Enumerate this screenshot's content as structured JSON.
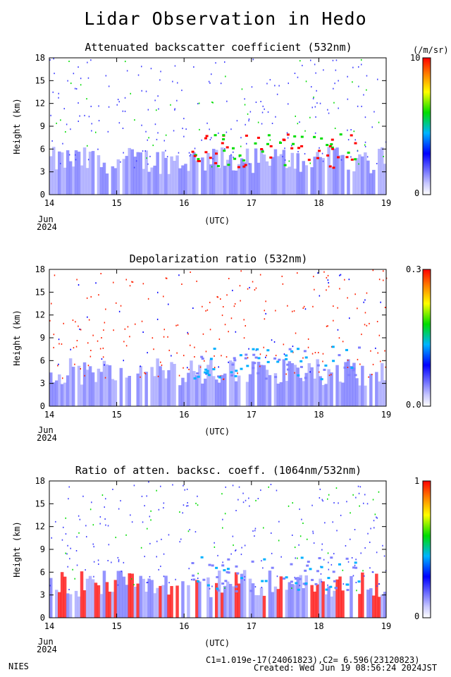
{
  "header": {
    "title": "Lidar Observation in Hedo"
  },
  "footer": {
    "org": "NIES",
    "constants": "C1=1.019e-17(24061823),C2= 6.596(23120823)",
    "created": "Created: Wed Jun 19 08:56:24 2024JST"
  },
  "colors": {
    "low": "#0000ff",
    "mid": "#00cc00",
    "high": "#ff0000"
  },
  "chart_data": [
    {
      "type": "heatmap",
      "title": "Attenuated backscatter coefficient (532nm)",
      "ylabel": "Height (km)",
      "xlabel": "(UTC)",
      "x_ticks": [
        "14",
        "15",
        "16",
        "17",
        "18",
        "19"
      ],
      "x_month": "Jun",
      "x_year": "2024",
      "y_ticks": [
        "0",
        "3",
        "6",
        "9",
        "12",
        "15",
        "18"
      ],
      "ylim": [
        0,
        18
      ],
      "xlim": [
        "14 Jun 2024",
        "19 Jun 2024"
      ],
      "colorbar": {
        "max_label": "10",
        "min_label": "0",
        "unit": "(/m/sr)",
        "range": [
          0,
          10
        ]
      }
    },
    {
      "type": "heatmap",
      "title": "Depolarization ratio (532nm)",
      "ylabel": "Height (km)",
      "xlabel": "(UTC)",
      "x_ticks": [
        "14",
        "15",
        "16",
        "17",
        "18",
        "19"
      ],
      "x_month": "Jun",
      "x_year": "2024",
      "y_ticks": [
        "0",
        "3",
        "6",
        "9",
        "12",
        "15",
        "18"
      ],
      "ylim": [
        0,
        18
      ],
      "xlim": [
        "14 Jun 2024",
        "19 Jun 2024"
      ],
      "colorbar": {
        "max_label": "0.3",
        "min_label": "0.0",
        "range": [
          0,
          0.3
        ]
      }
    },
    {
      "type": "heatmap",
      "title": "Ratio of atten. backsc. coeff. (1064nm/532nm)",
      "ylabel": "Height (km)",
      "xlabel": "(UTC)",
      "x_ticks": [
        "14",
        "15",
        "16",
        "17",
        "18",
        "19"
      ],
      "x_month": "Jun",
      "x_year": "2024",
      "y_ticks": [
        "0",
        "3",
        "6",
        "9",
        "12",
        "15",
        "18"
      ],
      "ylim": [
        0,
        18
      ],
      "xlim": [
        "14 Jun 2024",
        "19 Jun 2024"
      ],
      "colorbar": {
        "max_label": "1",
        "min_label": "0",
        "range": [
          0,
          1
        ]
      }
    }
  ]
}
